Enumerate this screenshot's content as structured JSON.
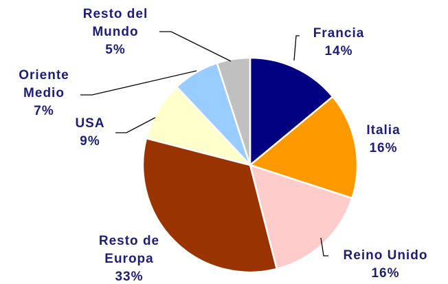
{
  "chart_data": {
    "type": "pie",
    "categories": [
      "Francia",
      "Italia",
      "Reino Unido",
      "Resto de Europa",
      "USA",
      "Oriente Medio",
      "Resto del Mundo"
    ],
    "values": [
      14,
      16,
      16,
      33,
      9,
      7,
      5
    ],
    "value_labels": [
      "14%",
      "16%",
      "16%",
      "33%",
      "9%",
      "7%",
      "5%"
    ],
    "colors": [
      "#000080",
      "#ff9900",
      "#ffcccc",
      "#993300",
      "#ffffcc",
      "#99ccff",
      "#c0c0c0"
    ]
  }
}
